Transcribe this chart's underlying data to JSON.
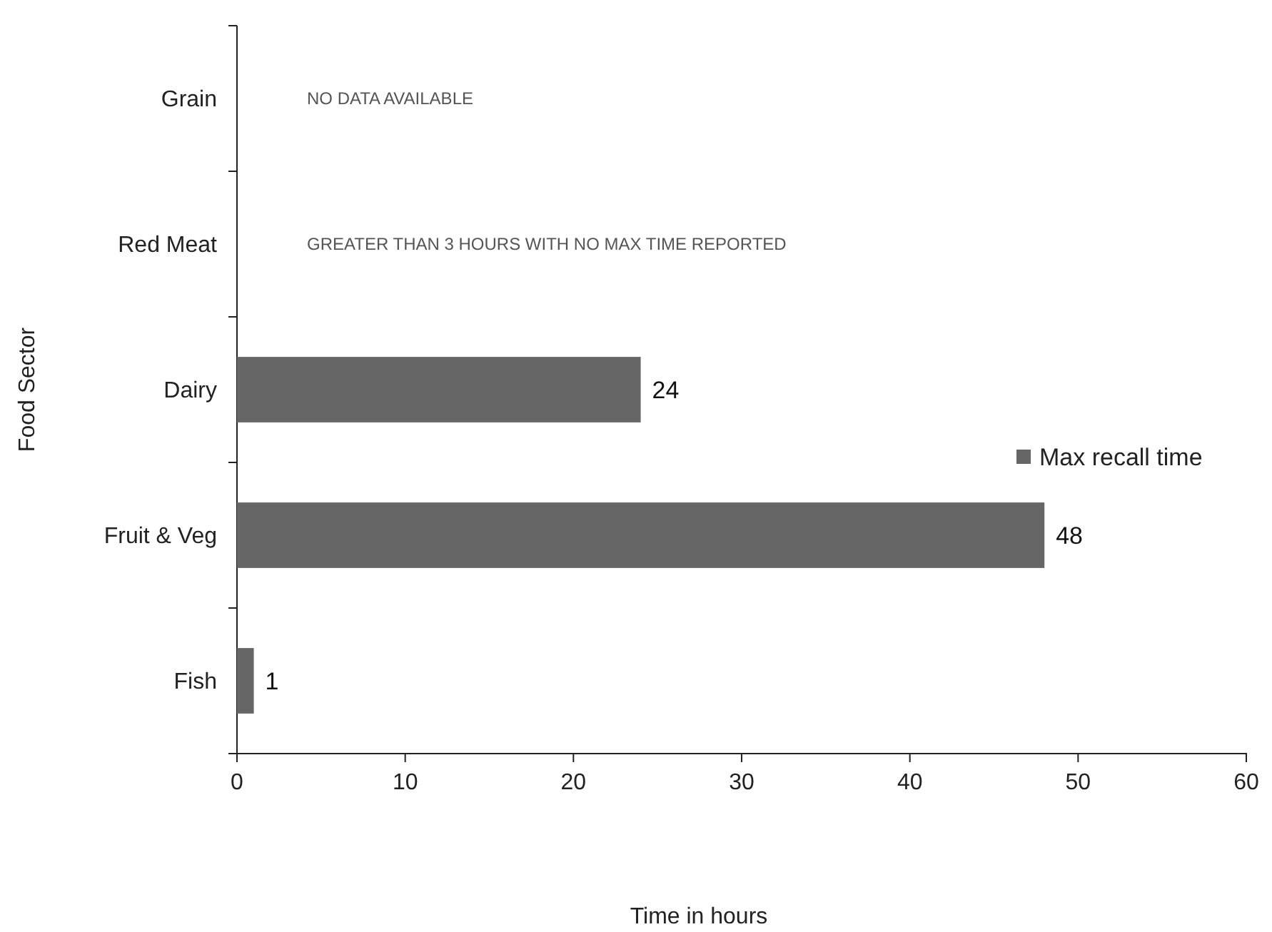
{
  "chart_data": {
    "type": "bar",
    "orientation": "horizontal",
    "xlabel": "Time in hours",
    "ylabel": "Food Sector",
    "categories": [
      "Grain",
      "Red Meat",
      "Dairy",
      "Fruit & Veg",
      "Fish"
    ],
    "series": [
      {
        "name": "Max recall time",
        "color": "#666666",
        "values": [
          null,
          null,
          24,
          48,
          1
        ]
      }
    ],
    "xlim": [
      0,
      60
    ],
    "xticks": [
      0,
      10,
      20,
      30,
      40,
      50,
      60
    ],
    "data_labels": true,
    "legend": "right",
    "grid": false,
    "annotations": [
      "NO DATA AVAILABLE",
      "GREATER THAN 3 HOURS WITH NO MAX TIME REPORTED"
    ]
  }
}
